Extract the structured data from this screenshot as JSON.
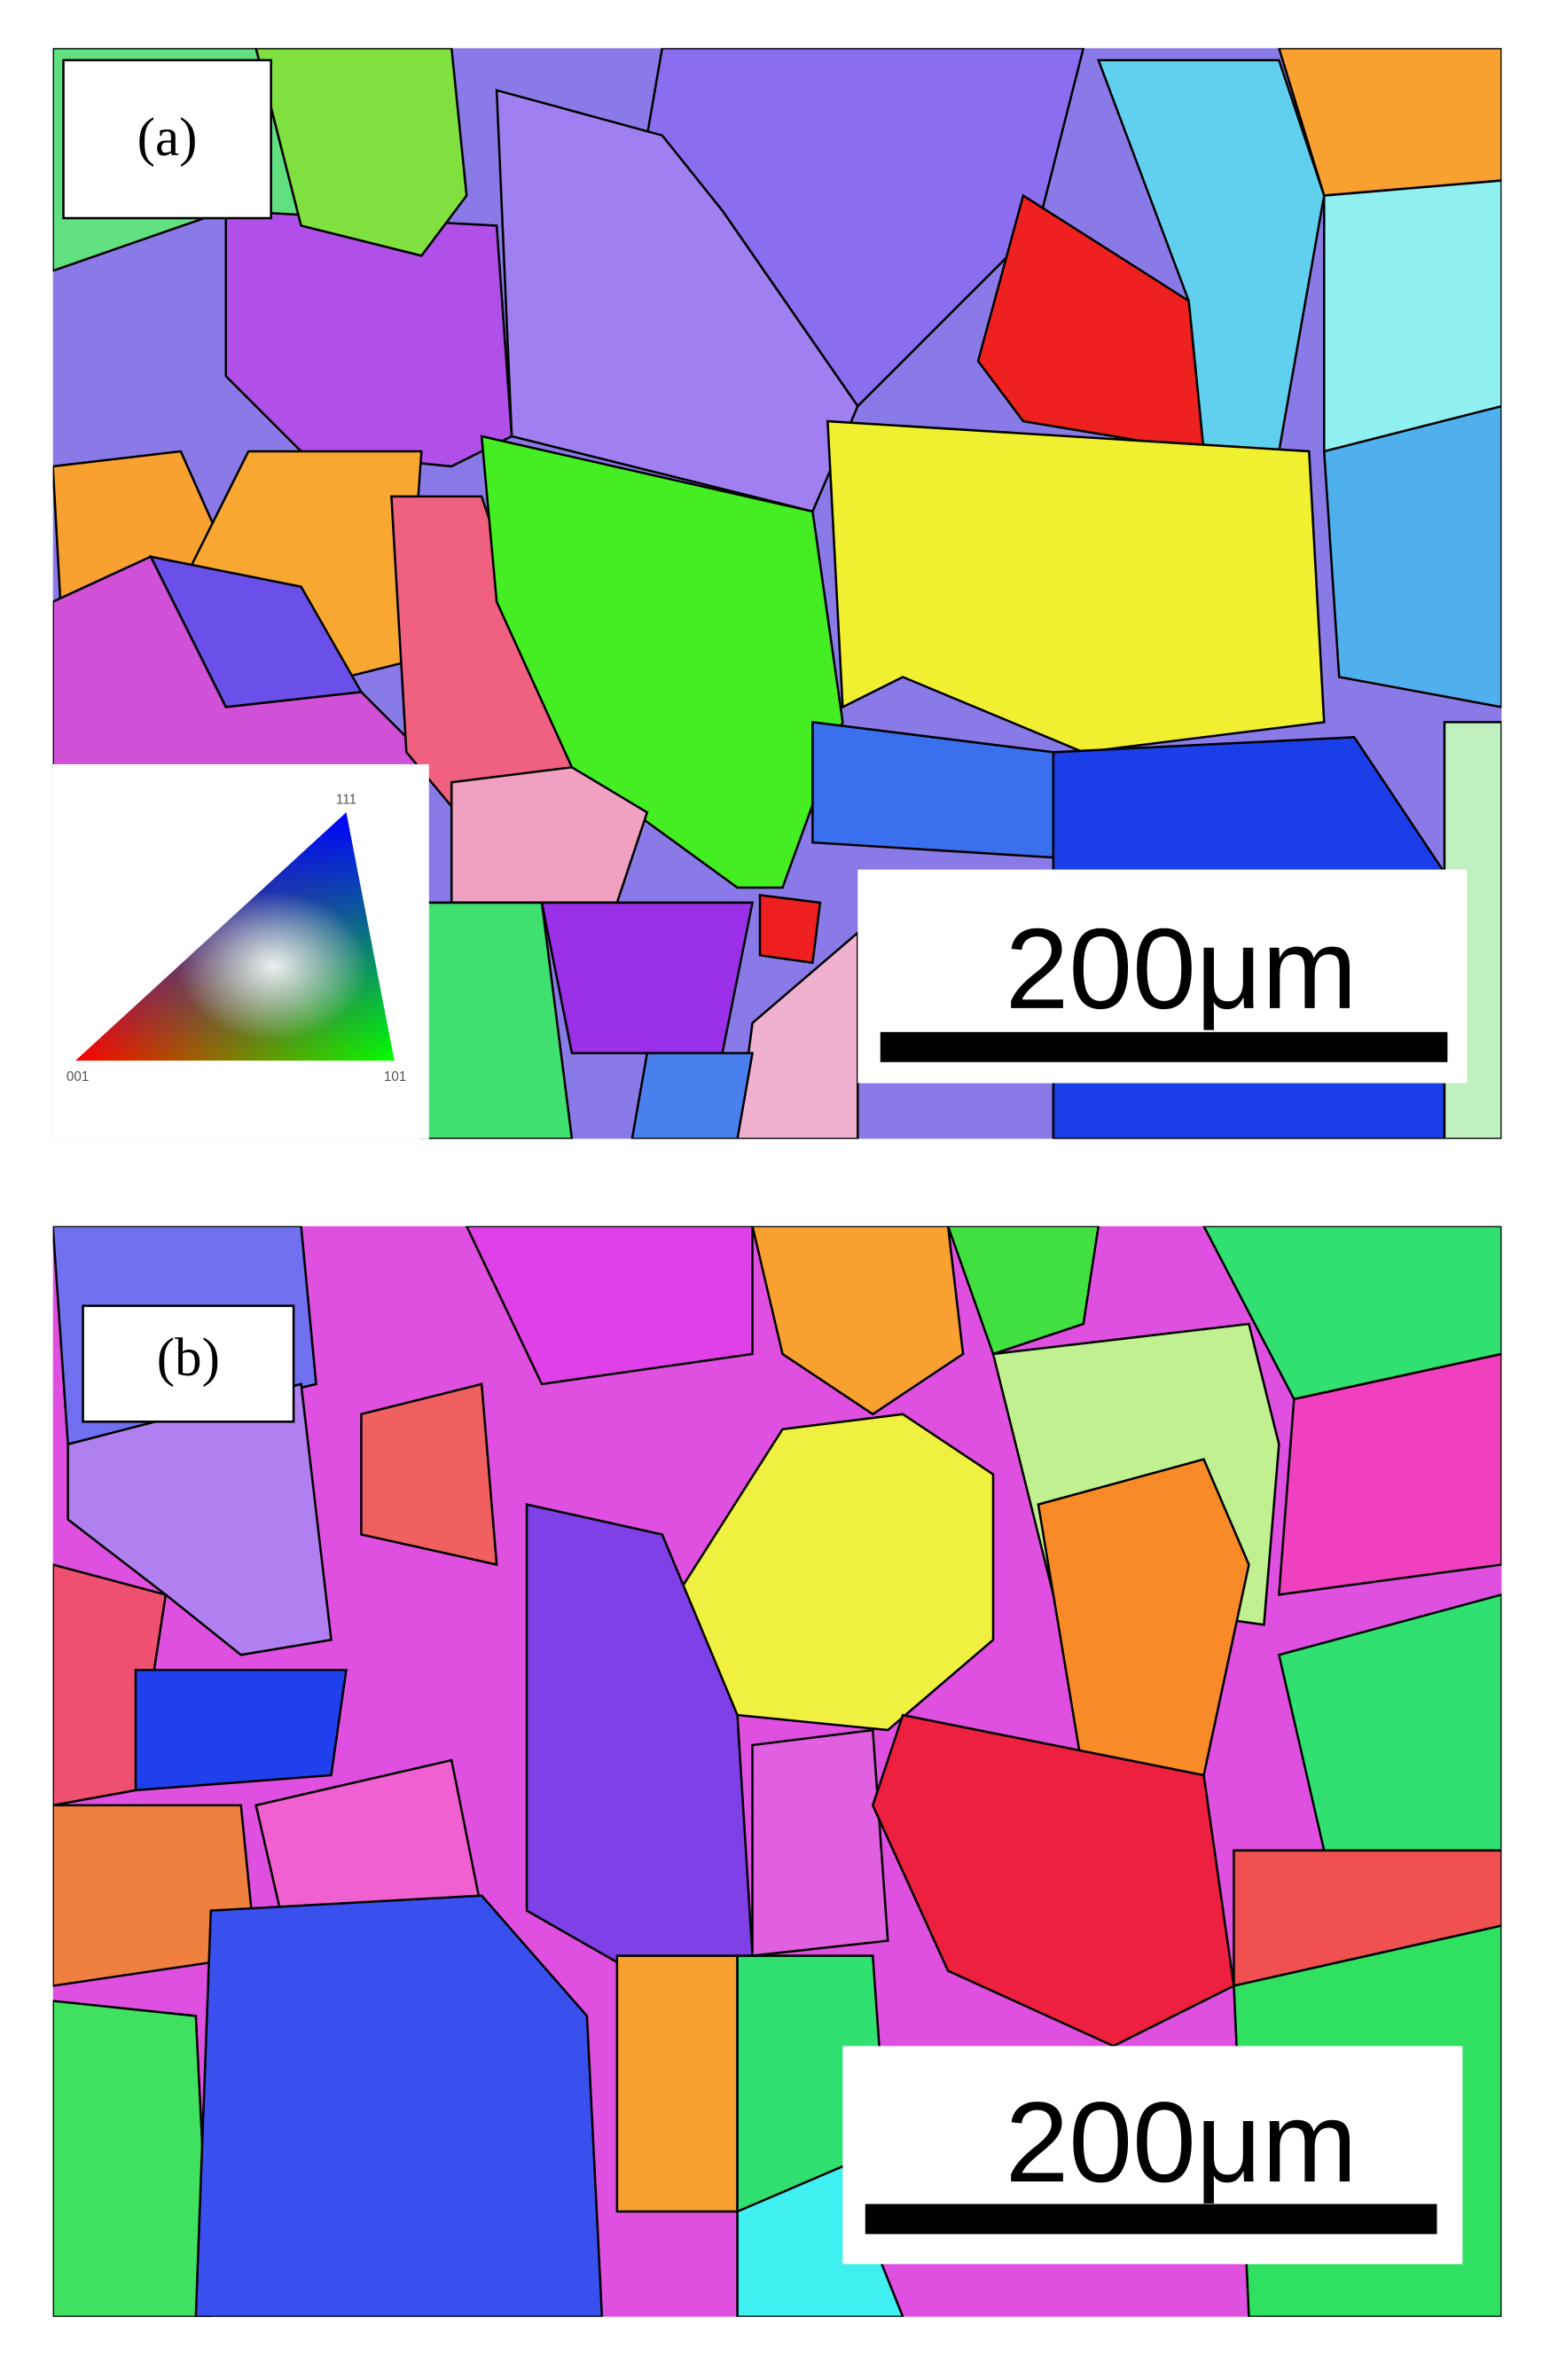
{
  "panels": [
    {
      "label": "(a)",
      "scale_bar": "200μm"
    },
    {
      "label": "(b)",
      "scale_bar": "200μm"
    }
  ],
  "legend": {
    "top": "111",
    "left": "001",
    "right": "101"
  }
}
